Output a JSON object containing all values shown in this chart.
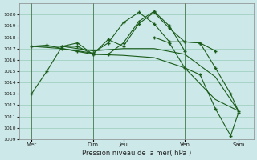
{
  "background_color": "#cce8e8",
  "grid_color": "#99ccbb",
  "line_color": "#1a5c1a",
  "marker_color": "#1a5c1a",
  "xlabel": "Pression niveau de la mer( hPa )",
  "ylim": [
    1009,
    1021
  ],
  "yticks": [
    1009,
    1010,
    1011,
    1012,
    1013,
    1014,
    1015,
    1016,
    1017,
    1018,
    1019,
    1020
  ],
  "xlim": [
    -0.3,
    15.0
  ],
  "xtick_labels": [
    "Mer",
    "Dim",
    "Jeu",
    "Ven",
    "Sam"
  ],
  "xtick_positions": [
    0.5,
    4.5,
    6.5,
    10.5,
    14.0
  ],
  "vlines": [
    0.5,
    4.5,
    6.5,
    10.5,
    14.0
  ],
  "series": [
    {
      "x": [
        0.5,
        1.5,
        2.5,
        3.5,
        4.5,
        5.5,
        6.5,
        7.5,
        8.5,
        9.5,
        10.5
      ],
      "y": [
        1013.0,
        1015.0,
        1017.2,
        1017.2,
        1016.5,
        1016.5,
        1017.5,
        1019.4,
        1020.3,
        1019.0,
        1016.8
      ],
      "marker": true
    },
    {
      "x": [
        0.5,
        1.5,
        2.5,
        3.5,
        4.5,
        5.5,
        6.5,
        7.5,
        8.5,
        9.5,
        10.5,
        11.5,
        12.5
      ],
      "y": [
        1017.2,
        1017.3,
        1017.0,
        1016.8,
        1016.6,
        1017.5,
        1019.3,
        1020.2,
        1019.2,
        1017.6,
        1017.6,
        1017.5,
        1016.8
      ],
      "marker": true
    },
    {
      "x": [
        2.5,
        3.5,
        4.5,
        5.5,
        6.5,
        7.5,
        8.5,
        9.5,
        10.5,
        11.5,
        12.5,
        13.5,
        14.0
      ],
      "y": [
        1017.2,
        1017.5,
        1016.5,
        1017.8,
        1017.2,
        1019.2,
        1020.2,
        1018.8,
        1017.6,
        1017.5,
        1015.3,
        1013.0,
        1011.5
      ],
      "marker": true
    },
    {
      "x": [
        0.5,
        2.5,
        4.5,
        6.5,
        8.5,
        10.5,
        12.5,
        14.0
      ],
      "y": [
        1017.2,
        1017.2,
        1016.8,
        1017.0,
        1017.0,
        1016.5,
        1014.5,
        1011.5
      ],
      "marker": false
    },
    {
      "x": [
        0.5,
        2.5,
        4.5,
        6.5,
        8.5,
        10.5,
        12.5,
        14.0
      ],
      "y": [
        1017.2,
        1017.0,
        1016.5,
        1016.4,
        1016.2,
        1015.3,
        1012.5,
        1011.5
      ],
      "marker": false
    },
    {
      "x": [
        8.5,
        9.5,
        10.5,
        11.5,
        12.5,
        13.5,
        14.0
      ],
      "y": [
        1018.0,
        1017.5,
        1015.3,
        1014.7,
        1011.7,
        1009.3,
        1011.3
      ],
      "marker": true
    }
  ]
}
